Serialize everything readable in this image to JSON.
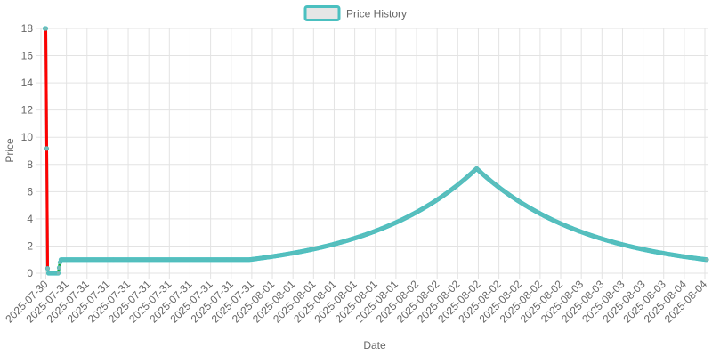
{
  "chart_data": {
    "type": "line",
    "legend": {
      "label": "Price History",
      "position": "top-center"
    },
    "xlabel": "Date",
    "ylabel": "Price",
    "ylim": [
      0,
      18
    ],
    "yticks": [
      0,
      2,
      4,
      6,
      8,
      10,
      12,
      14,
      16,
      18
    ],
    "grid": true,
    "x_ticks": [
      "2025-07-30",
      "2025-07-31",
      "2025-07-31",
      "2025-07-31",
      "2025-07-31",
      "2025-07-31",
      "2025-07-31",
      "2025-07-31",
      "2025-07-31",
      "2025-07-31",
      "2025-07-31",
      "2025-08-01",
      "2025-08-01",
      "2025-08-01",
      "2025-08-01",
      "2025-08-01",
      "2025-08-01",
      "2025-08-01",
      "2025-08-02",
      "2025-08-02",
      "2025-08-02",
      "2025-08-02",
      "2025-08-02",
      "2025-08-02",
      "2025-08-02",
      "2025-08-02",
      "2025-08-03",
      "2025-08-03",
      "2025-08-03",
      "2025-08-03",
      "2025-08-03",
      "2025-08-04",
      "2025-08-04"
    ],
    "colors": {
      "line": "#4bc0c0",
      "point_fill": "#7fb8b4",
      "point_stroke": "#4bc0c0",
      "up": "#00a000",
      "down": "#ff0000",
      "legend_fill": "#e6e6e6"
    },
    "series": [
      {
        "name": "Price History",
        "segments": [
          {
            "t0": 0.0,
            "t1": 1.0,
            "p0": 18.0,
            "p1": 18.0,
            "kind": "flat"
          },
          {
            "t0": 1.0,
            "t1": 3.0,
            "p0": 18.0,
            "p1": 0.35,
            "kind": "linear"
          },
          {
            "t0": 3.0,
            "t1": 4.0,
            "p0": 0.35,
            "p1": 0.0,
            "kind": "linear"
          },
          {
            "t0": 4.0,
            "t1": 15.0,
            "p0": 0.0,
            "p1": 0.0,
            "kind": "flat"
          },
          {
            "t0": 15.0,
            "t1": 17.5,
            "p0": 0.0,
            "p1": 1.0,
            "kind": "linear"
          },
          {
            "t0": 17.5,
            "t1": 230.0,
            "p0": 1.0,
            "p1": 1.0,
            "kind": "flat"
          },
          {
            "t0": 230.0,
            "t1": 486.0,
            "p0": 1.0,
            "p1": 7.7,
            "kind": "exp"
          },
          {
            "t0": 486.0,
            "t1": 745.0,
            "p0": 7.7,
            "p1": 1.0,
            "kind": "exp"
          }
        ],
        "t_max": 745.0
      }
    ]
  }
}
